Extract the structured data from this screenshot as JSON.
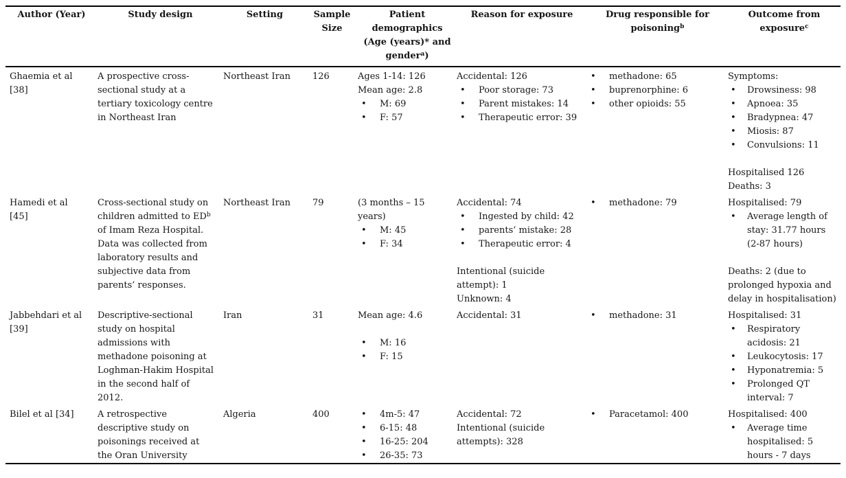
{
  "colors": {
    "background": "#ffffff",
    "text": "#161616",
    "rule": "#000000"
  },
  "table": {
    "columns": [
      "Author (Year)",
      "Study design",
      "Setting",
      "Sample Size",
      "Patient demographics (Age (years)* and gender^{a})",
      "Reason for exposure",
      "Drug responsible for poisoning^{b}",
      "Outcome from exposure^{c}"
    ],
    "rows": [
      {
        "cells": [
          [
            {
              "text": "Ghaemia et al"
            },
            {
              "text": "[38]"
            }
          ],
          [
            {
              "text": "A prospective cross-sectional study at a tertiary toxicology centre in Northeast Iran"
            }
          ],
          [
            {
              "text": "Northeast Iran"
            }
          ],
          [
            {
              "text": "126"
            }
          ],
          [
            {
              "text": "Ages 1-14: 126"
            },
            {
              "text": "Mean age: 2.8"
            },
            {
              "text": "M: 69",
              "bullet": true
            },
            {
              "text": "F: 57",
              "bullet": true
            }
          ],
          [
            {
              "text": "Accidental: 126"
            },
            {
              "text": "Poor storage: 73",
              "bullet": true
            },
            {
              "text": "Parent mistakes: 14",
              "bullet": true
            },
            {
              "text": "Therapeutic error: 39",
              "bullet": true
            }
          ],
          [
            {
              "text": "methadone: 65",
              "bullet": true
            },
            {
              "text": "buprenorphine: 6",
              "bullet": true
            },
            {
              "text": "other opioids: 55",
              "bullet": true
            }
          ],
          [
            {
              "text": "Symptoms:"
            },
            {
              "text": "Drowsiness: 98",
              "bullet": true
            },
            {
              "text": "Apnoea: 35",
              "bullet": true
            },
            {
              "text": "Bradypnea: 47",
              "bullet": true
            },
            {
              "text": "Miosis: 87",
              "bullet": true
            },
            {
              "text": "Convulsions: 11",
              "bullet": true
            },
            {
              "blank": true
            },
            {
              "text": "Hospitalised 126"
            },
            {
              "text": "Deaths: 3"
            }
          ]
        ]
      },
      {
        "cells": [
          [
            {
              "text": "Hamedi et al"
            },
            {
              "text": "[45]"
            }
          ],
          [
            {
              "text": "Cross-sectional study on children admitted to ED^{b} of Imam Reza Hospital. Data was collected from laboratory results and subjective data from parents’ responses."
            }
          ],
          [
            {
              "text": "Northeast Iran"
            }
          ],
          [
            {
              "text": "79"
            }
          ],
          [
            {
              "text": "(3 months – 15 years)"
            },
            {
              "text": "M: 45",
              "bullet": true
            },
            {
              "text": "F: 34",
              "bullet": true
            }
          ],
          [
            {
              "text": "Accidental: 74"
            },
            {
              "text": "Ingested by child: 42",
              "bullet": true
            },
            {
              "text": "parents’ mistake: 28",
              "bullet": true
            },
            {
              "text": "Therapeutic error: 4",
              "bullet": true
            },
            {
              "blank": true
            },
            {
              "text": "Intentional (suicide attempt): 1"
            },
            {
              "text": "Unknown: 4"
            }
          ],
          [
            {
              "text": "methadone: 79",
              "bullet": true
            }
          ],
          [
            {
              "text": "Hospitalised: 79"
            },
            {
              "text": "Average length of stay: 31.77 hours (2-87 hours)",
              "bullet": true
            },
            {
              "blank": true
            },
            {
              "text": "Deaths: 2 (due to prolonged hypoxia and delay in hospitalisation)"
            }
          ]
        ]
      },
      {
        "cells": [
          [
            {
              "text": "Jabbehdari et al"
            },
            {
              "text": "[39]"
            }
          ],
          [
            {
              "text": "Descriptive-sectional study on hospital admissions with methadone poisoning at Loghman-Hakim Hospital in the second half of 2012."
            }
          ],
          [
            {
              "text": "Iran"
            }
          ],
          [
            {
              "text": "31"
            }
          ],
          [
            {
              "text": "Mean age: 4.6"
            },
            {
              "blank": true
            },
            {
              "text": "M: 16",
              "bullet": true
            },
            {
              "text": "F: 15",
              "bullet": true
            }
          ],
          [
            {
              "text": "Accidental: 31"
            }
          ],
          [
            {
              "text": "methadone: 31",
              "bullet": true
            }
          ],
          [
            {
              "text": "Hospitalised: 31"
            },
            {
              "text": "Respiratory acidosis: 21",
              "bullet": true
            },
            {
              "text": "Leukocytosis: 17",
              "bullet": true
            },
            {
              "text": "Hyponatremia: 5",
              "bullet": true
            },
            {
              "text": "Prolonged QT interval: 7",
              "bullet": true
            }
          ]
        ]
      },
      {
        "cells": [
          [
            {
              "text": "Bilel et al [34]"
            }
          ],
          [
            {
              "text": "A retrospective descriptive study on poisonings received at the Oran University"
            }
          ],
          [
            {
              "text": "Algeria"
            }
          ],
          [
            {
              "text": "400"
            }
          ],
          [
            {
              "text": "4m-5: 47",
              "bullet": true
            },
            {
              "text": "6-15: 48",
              "bullet": true
            },
            {
              "text": "16-25: 204",
              "bullet": true
            },
            {
              "text": "26-35: 73",
              "bullet": true
            }
          ],
          [
            {
              "text": "Accidental: 72"
            },
            {
              "text": "Intentional (suicide attempts): 328"
            }
          ],
          [
            {
              "text": "Paracetamol: 400",
              "bullet": true
            }
          ],
          [
            {
              "text": "Hospitalised: 400"
            },
            {
              "text": "Average time hospitalised: 5 hours - 7 days",
              "bullet": true
            }
          ]
        ]
      }
    ]
  }
}
